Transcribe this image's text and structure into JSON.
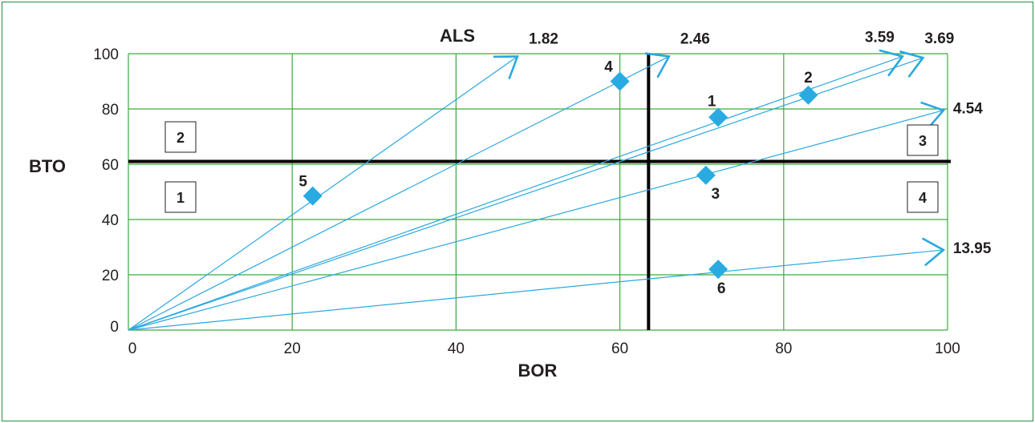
{
  "chart_data": {
    "type": "scatter",
    "xlabel": "BOR",
    "ylabel": "BTO",
    "top_label": "ALS",
    "xlim": [
      0,
      100
    ],
    "ylim": [
      0,
      100
    ],
    "x_ticks": [
      "0",
      "20",
      "40",
      "60",
      "80",
      "100"
    ],
    "y_ticks": [
      "0",
      "20",
      "40",
      "60",
      "80",
      "100"
    ],
    "grid": true,
    "reference_lines": {
      "x": 63.5,
      "y": 61
    },
    "quadrants": [
      {
        "label": "1",
        "position": "lower-left"
      },
      {
        "label": "2",
        "position": "upper-left"
      },
      {
        "label": "3",
        "position": "upper-right"
      },
      {
        "label": "4",
        "position": "lower-right"
      }
    ],
    "points": [
      {
        "label": "1",
        "x": 72,
        "y": 77
      },
      {
        "label": "2",
        "x": 83,
        "y": 85
      },
      {
        "label": "3",
        "x": 70.5,
        "y": 56
      },
      {
        "label": "4",
        "x": 60,
        "y": 90
      },
      {
        "label": "5",
        "x": 22.5,
        "y": 48.5
      },
      {
        "label": "6",
        "x": 72,
        "y": 22
      }
    ],
    "als_lines": [
      {
        "label": "1.82",
        "x": 47.5,
        "y": 99
      },
      {
        "label": "2.46",
        "x": 66,
        "y": 99
      },
      {
        "label": "3.59",
        "x": 94.5,
        "y": 99
      },
      {
        "label": "3.69",
        "x": 97,
        "y": 98.5
      },
      {
        "label": "4.54",
        "x": 99.5,
        "y": 79.5
      },
      {
        "label": "13.95",
        "x": 99.5,
        "y": 29
      }
    ],
    "colors": {
      "grid": "#3daa3d",
      "frame": "#2e8b3c",
      "line": "#29a8e0",
      "marker": "#29abe2",
      "reference": "#000000"
    }
  }
}
